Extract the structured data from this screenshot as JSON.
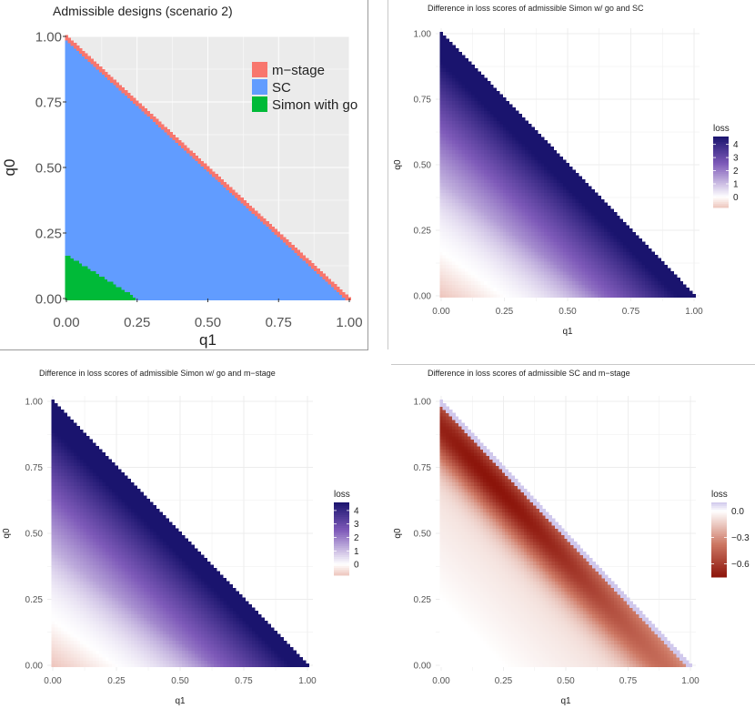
{
  "chart_data": [
    {
      "type": "heatmap",
      "title": "Admissible designs (scenario 2)",
      "xlabel": "q1",
      "ylabel": "q0",
      "xlim": [
        0,
        1
      ],
      "ylim": [
        0,
        1
      ],
      "x_ticks": [
        "0.00",
        "0.25",
        "0.50",
        "0.75",
        "1.00"
      ],
      "y_ticks": [
        "0.00",
        "0.25",
        "0.50",
        "0.75",
        "1.00"
      ],
      "legend_title": "",
      "categories": [
        {
          "label": "m−stage",
          "color": "#F8766D"
        },
        {
          "label": "SC",
          "color": "#619CFF"
        },
        {
          "label": "Simon with go",
          "color": "#00BA38"
        }
      ],
      "regions": {
        "domain": "q0 + q1 <= 1",
        "m_stage_boundary_band": 0.012,
        "simon_go_q0_at_q1_0": 0.17,
        "simon_go_q1_at_q0_0": 0.25
      },
      "legend_position": "top-right"
    },
    {
      "type": "heatmap",
      "title": "Difference in loss scores of admissible Simon w/ go and SC",
      "xlabel": "q1",
      "ylabel": "q0",
      "xlim": [
        0,
        1
      ],
      "ylim": [
        0,
        1
      ],
      "x_ticks": [
        "0.00",
        "0.25",
        "0.50",
        "0.75",
        "1.00"
      ],
      "y_ticks": [
        "0.00",
        "0.25",
        "0.50",
        "0.75",
        "1.00"
      ],
      "legend_title": "loss",
      "legend_ticks": [
        "4",
        "3",
        "2",
        "1",
        "0"
      ],
      "legend_values": [
        4,
        3,
        2,
        1,
        0
      ],
      "value_range": [
        -0.8,
        4.6
      ],
      "zero_line": {
        "q1_at_q0_0": 0.25,
        "q0_at_q1_0": 0.17
      },
      "scale": "diverging-blue-red",
      "legend_position": "right"
    },
    {
      "type": "heatmap",
      "title": "Difference in loss scores of admissible Simon w/ go and m−stage",
      "xlabel": "q1",
      "ylabel": "q0",
      "xlim": [
        0,
        1
      ],
      "ylim": [
        0,
        1
      ],
      "x_ticks": [
        "0.00",
        "0.25",
        "0.50",
        "0.75",
        "1.00"
      ],
      "y_ticks": [
        "0.00",
        "0.25",
        "0.50",
        "0.75",
        "1.00"
      ],
      "legend_title": "loss",
      "legend_ticks": [
        "4",
        "3",
        "2",
        "1",
        "0"
      ],
      "legend_values": [
        4,
        3,
        2,
        1,
        0
      ],
      "value_range": [
        -0.8,
        4.6
      ],
      "zero_line": {
        "q1_at_q0_0": 0.25,
        "q0_at_q1_0": 0.17
      },
      "scale": "diverging-blue-red",
      "legend_position": "right"
    },
    {
      "type": "heatmap",
      "title": "Difference in loss scores of admissible SC and m−stage",
      "xlabel": "q1",
      "ylabel": "q0",
      "xlim": [
        0,
        1
      ],
      "ylim": [
        0,
        1
      ],
      "x_ticks": [
        "0.00",
        "0.25",
        "0.50",
        "0.75",
        "1.00"
      ],
      "y_ticks": [
        "0.00",
        "0.25",
        "0.50",
        "0.75",
        "1.00"
      ],
      "legend_title": "loss",
      "legend_ticks": [
        "0.0",
        "−0.3",
        "−0.6"
      ],
      "legend_values": [
        0.0,
        -0.3,
        -0.6
      ],
      "value_range": [
        -0.75,
        0.1
      ],
      "darkest_point": {
        "q1": 0.2,
        "q0": 0.7,
        "value": -0.75
      },
      "scale": "diverging-red-blue",
      "legend_position": "right"
    }
  ]
}
